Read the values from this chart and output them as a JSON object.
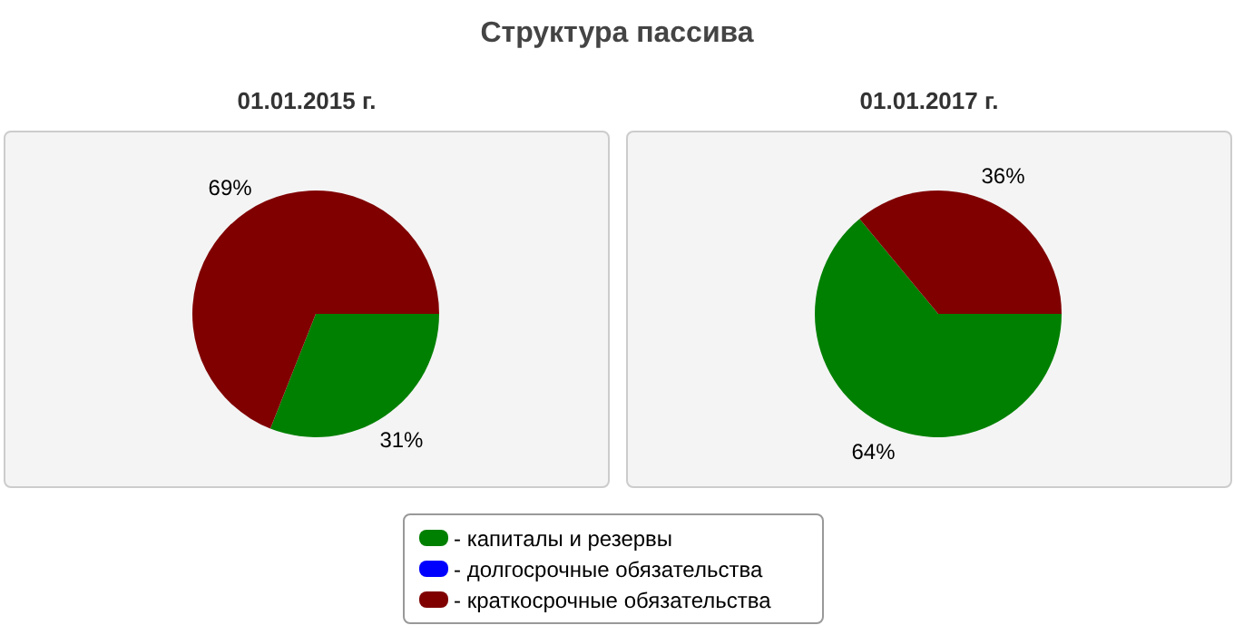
{
  "chart_data": [
    {
      "type": "pie",
      "title": "Структура пассива",
      "subtitle": "01.01.2015 г.",
      "categories": [
        "- капиталы и резервы",
        "- долгосрочные обязательства",
        "- краткосрочные обязательства"
      ],
      "values": [
        31,
        0,
        69
      ],
      "colors": [
        "#008000",
        "#0000ff",
        "#800000"
      ],
      "value_labels": [
        "31%",
        null,
        "69%"
      ],
      "legend": "bottom"
    },
    {
      "type": "pie",
      "subtitle": "01.01.2017 г.",
      "categories": [
        null,
        null,
        null
      ],
      "values": [
        64,
        0,
        36
      ],
      "colors": [
        "#008000",
        "#0000ff",
        "#800000"
      ],
      "value_labels": [
        "64%",
        null,
        "36%"
      ]
    }
  ]
}
